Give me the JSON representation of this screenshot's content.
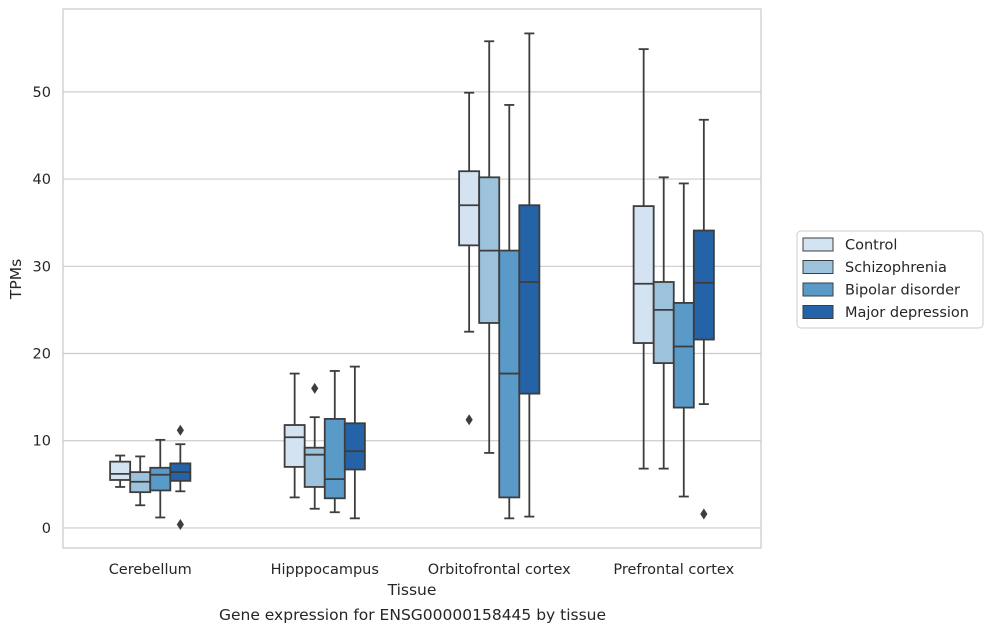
{
  "caption": "Gene expression for ENSG00000158445 by tissue",
  "chart_data": {
    "type": "box",
    "xlabel": "Tissue",
    "ylabel": "TPMs",
    "ylim": [
      -2.3,
      59.5
    ],
    "yticks": [
      0,
      10,
      20,
      30,
      40,
      50
    ],
    "grid": "horizontal",
    "legend_position": "outside-right",
    "categories": [
      "Cerebellum",
      "Hipppocampus",
      "Orbitofrontal cortex",
      "Prefrontal cortex"
    ],
    "series": [
      {
        "name": "Control",
        "color": "#d3e3f1",
        "boxes": [
          {
            "whislo": 4.7,
            "q1": 5.5,
            "med": 6.2,
            "q3": 7.6,
            "whishi": 8.3,
            "fliers": []
          },
          {
            "whislo": 3.5,
            "q1": 7.0,
            "med": 10.4,
            "q3": 11.8,
            "whishi": 17.7,
            "fliers": []
          },
          {
            "whislo": 22.5,
            "q1": 32.4,
            "med": 37.0,
            "q3": 40.9,
            "whishi": 49.9,
            "fliers": [
              12.4
            ]
          },
          {
            "whislo": 6.8,
            "q1": 21.2,
            "med": 28.0,
            "q3": 36.9,
            "whishi": 54.9,
            "fliers": []
          }
        ]
      },
      {
        "name": "Schizophrenia",
        "color": "#9dc2dc",
        "boxes": [
          {
            "whislo": 2.6,
            "q1": 4.1,
            "med": 5.3,
            "q3": 6.4,
            "whishi": 8.2,
            "fliers": []
          },
          {
            "whislo": 2.2,
            "q1": 4.7,
            "med": 8.4,
            "q3": 9.2,
            "whishi": 12.7,
            "fliers": [
              16.0
            ]
          },
          {
            "whislo": 8.6,
            "q1": 23.5,
            "med": 31.8,
            "q3": 40.2,
            "whishi": 55.8,
            "fliers": []
          },
          {
            "whislo": 6.8,
            "q1": 18.9,
            "med": 25.0,
            "q3": 28.2,
            "whishi": 40.2,
            "fliers": []
          }
        ]
      },
      {
        "name": "Bipolar disorder",
        "color": "#5a9ac9",
        "boxes": [
          {
            "whislo": 1.2,
            "q1": 4.3,
            "med": 6.1,
            "q3": 6.9,
            "whishi": 10.1,
            "fliers": []
          },
          {
            "whislo": 1.8,
            "q1": 3.4,
            "med": 5.6,
            "q3": 12.5,
            "whishi": 18.0,
            "fliers": []
          },
          {
            "whislo": 1.1,
            "q1": 3.5,
            "med": 17.7,
            "q3": 31.8,
            "whishi": 48.5,
            "fliers": []
          },
          {
            "whislo": 3.6,
            "q1": 13.8,
            "med": 20.8,
            "q3": 25.8,
            "whishi": 39.5,
            "fliers": []
          }
        ]
      },
      {
        "name": "Major depression",
        "color": "#2463a8",
        "boxes": [
          {
            "whislo": 4.2,
            "q1": 5.4,
            "med": 6.4,
            "q3": 7.4,
            "whishi": 9.6,
            "fliers": [
              11.2,
              0.4
            ]
          },
          {
            "whislo": 1.1,
            "q1": 6.7,
            "med": 8.8,
            "q3": 12.0,
            "whishi": 18.5,
            "fliers": []
          },
          {
            "whislo": 1.3,
            "q1": 15.4,
            "med": 28.2,
            "q3": 37.0,
            "whishi": 56.7,
            "fliers": []
          },
          {
            "whislo": 14.2,
            "q1": 21.6,
            "med": 28.1,
            "q3": 34.1,
            "whishi": 46.8,
            "fliers": [
              1.6
            ]
          }
        ]
      }
    ]
  }
}
